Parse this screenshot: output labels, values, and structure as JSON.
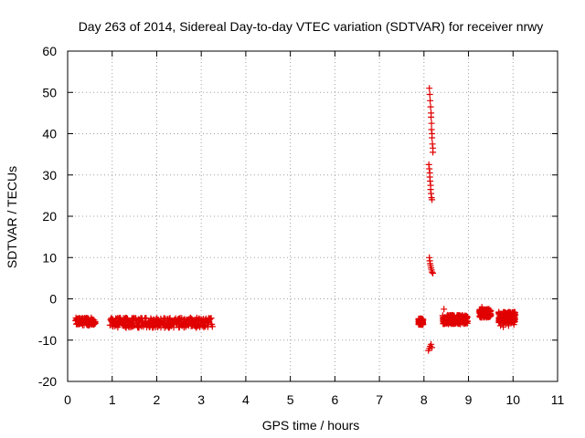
{
  "chart_data": {
    "type": "scatter",
    "title": "Day 263 of 2014, Sidereal Day-to-day VTEC variation (SDTVAR) for receiver nrwy",
    "xlabel": "GPS time / hours",
    "ylabel": "SDTVAR / TECUs",
    "xlim": [
      0,
      11
    ],
    "ylim": [
      -20,
      60
    ],
    "xticks": [
      "0",
      "1",
      "2",
      "3",
      "4",
      "5",
      "6",
      "7",
      "8",
      "9",
      "10",
      "11"
    ],
    "yticks": [
      "-20",
      "-10",
      "0",
      "10",
      "20",
      "30",
      "40",
      "50",
      "60"
    ],
    "grid": true,
    "marker": "plus",
    "color": "#e00000",
    "series": [
      {
        "name": "SDTVAR",
        "clusters": [
          {
            "x_range": [
              0.18,
              0.62
            ],
            "y_center": -5.5,
            "y_spread": 1.8,
            "density": 60
          },
          {
            "x_range": [
              0.95,
              3.25
            ],
            "y_center": -5.8,
            "y_spread": 2.4,
            "density": 160
          },
          {
            "x_range": [
              7.88,
              7.98
            ],
            "y_center": -5.5,
            "y_spread": 1.5,
            "density": 60
          },
          {
            "x_range": [
              8.42,
              8.98
            ],
            "y_center": -5.0,
            "y_spread": 2.2,
            "density": 100
          },
          {
            "x_range": [
              9.25,
              9.5
            ],
            "y_center": -3.5,
            "y_spread": 2.0,
            "density": 90
          },
          {
            "x_range": [
              9.68,
              10.05
            ],
            "y_center": -4.5,
            "y_spread": 2.6,
            "density": 100
          }
        ],
        "points": [
          {
            "x": 8.12,
            "y": 51
          },
          {
            "x": 8.13,
            "y": 49.5
          },
          {
            "x": 8.14,
            "y": 48
          },
          {
            "x": 8.15,
            "y": 46.5
          },
          {
            "x": 8.16,
            "y": 45
          },
          {
            "x": 8.16,
            "y": 44
          },
          {
            "x": 8.17,
            "y": 42.5
          },
          {
            "x": 8.17,
            "y": 41
          },
          {
            "x": 8.18,
            "y": 40
          },
          {
            "x": 8.18,
            "y": 39
          },
          {
            "x": 8.19,
            "y": 37.5
          },
          {
            "x": 8.2,
            "y": 36.5
          },
          {
            "x": 8.2,
            "y": 35.5
          },
          {
            "x": 8.11,
            "y": 32.5
          },
          {
            "x": 8.12,
            "y": 31.5
          },
          {
            "x": 8.13,
            "y": 30.5
          },
          {
            "x": 8.13,
            "y": 29.5
          },
          {
            "x": 8.14,
            "y": 28.5
          },
          {
            "x": 8.15,
            "y": 27.5
          },
          {
            "x": 8.15,
            "y": 26.5
          },
          {
            "x": 8.16,
            "y": 25.5
          },
          {
            "x": 8.17,
            "y": 24.5
          },
          {
            "x": 8.18,
            "y": 24
          },
          {
            "x": 8.12,
            "y": 10
          },
          {
            "x": 8.13,
            "y": 9.2
          },
          {
            "x": 8.14,
            "y": 8.5
          },
          {
            "x": 8.15,
            "y": 8
          },
          {
            "x": 8.16,
            "y": 7.5
          },
          {
            "x": 8.17,
            "y": 7
          },
          {
            "x": 8.18,
            "y": 6.5
          },
          {
            "x": 8.2,
            "y": 6.2
          },
          {
            "x": 8.1,
            "y": -12.5
          },
          {
            "x": 8.12,
            "y": -12
          },
          {
            "x": 8.14,
            "y": -11.5
          },
          {
            "x": 8.16,
            "y": -11
          },
          {
            "x": 8.18,
            "y": -11.8
          },
          {
            "x": 8.45,
            "y": -2.5
          },
          {
            "x": 9.3,
            "y": -2
          },
          {
            "x": 9.72,
            "y": -6.5
          },
          {
            "x": 9.78,
            "y": -6.8
          },
          {
            "x": 10.02,
            "y": -6.2
          },
          {
            "x": 9.9,
            "y": -6.5
          }
        ]
      }
    ]
  }
}
